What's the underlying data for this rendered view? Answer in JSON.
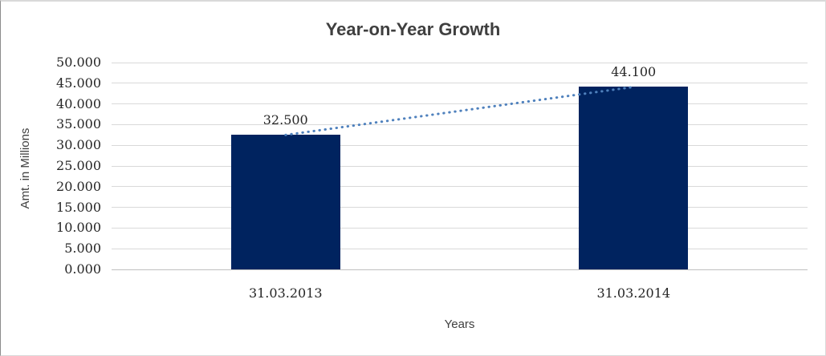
{
  "chart_data": {
    "type": "bar",
    "title": "Year-on-Year Growth",
    "xlabel": "Years",
    "ylabel": "Amt. in Millions",
    "categories": [
      "31.03.2013",
      "31.03.2014"
    ],
    "values": [
      32.5,
      44.1
    ],
    "data_labels": [
      "32.500",
      "44.100"
    ],
    "y_ticks": [
      {
        "value": 50,
        "label": "50.000"
      },
      {
        "value": 45,
        "label": "45.000"
      },
      {
        "value": 40,
        "label": "40.000"
      },
      {
        "value": 35,
        "label": "35.000"
      },
      {
        "value": 30,
        "label": "30.000"
      },
      {
        "value": 25,
        "label": "25.000"
      },
      {
        "value": 20,
        "label": "20.000"
      },
      {
        "value": 15,
        "label": "15.000"
      },
      {
        "value": 10,
        "label": "10.000"
      },
      {
        "value": 5,
        "label": "5.000"
      },
      {
        "value": 0,
        "label": "0.000"
      }
    ],
    "ylim": [
      0,
      50
    ],
    "grid": "horizontal",
    "legend": "none",
    "trendline": {
      "style": "dotted",
      "from_value": 32.5,
      "to_value": 44.1
    },
    "colors": {
      "bar": "#00235F",
      "trend": "#4F81BD",
      "gridline": "#D9D9D9",
      "axis_line": "#BFBFBF",
      "title": "#3F3F3F",
      "tick_label": "#262626",
      "axis_title": "#404040"
    }
  }
}
